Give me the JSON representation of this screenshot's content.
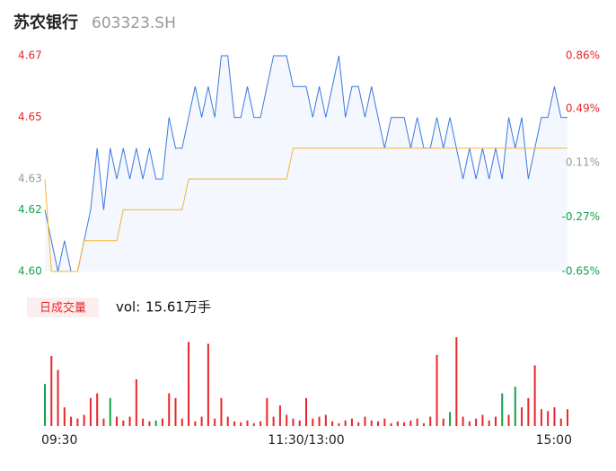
{
  "header": {
    "name": "苏农银行",
    "code": "603323.SH"
  },
  "chart_data": [
    {
      "type": "line",
      "ylim": [
        4.6,
        4.67
      ],
      "yticks": [
        4.67,
        4.65,
        4.63,
        4.62,
        {
          "value": 4.6,
          "label": "4.60"
        }
      ],
      "y2lim": [
        -0.65,
        0.86
      ],
      "y2ticks": [
        {
          "value": 0.86,
          "label": "0.86%"
        },
        {
          "value": 0.49,
          "label": "0.49%"
        },
        {
          "value": 0.11,
          "label": "0.11%"
        },
        {
          "value": -0.27,
          "label": "-0.27%"
        },
        {
          "value": -0.65,
          "label": "-0.65%"
        }
      ],
      "up_color": "#e8262a",
      "down_color": "#14a04a",
      "flat_color": "#999999",
      "series": [
        {
          "color": "#3a78e0",
          "fill": "#f4f7fd",
          "values": [
            4.62,
            4.61,
            4.6,
            4.61,
            4.6,
            4.6,
            4.61,
            4.62,
            4.64,
            4.62,
            4.64,
            4.63,
            4.64,
            4.63,
            4.64,
            4.63,
            4.64,
            4.63,
            4.63,
            4.65,
            4.64,
            4.64,
            4.65,
            4.66,
            4.65,
            4.66,
            4.65,
            4.67,
            4.67,
            4.65,
            4.65,
            4.66,
            4.65,
            4.65,
            4.66,
            4.67,
            4.67,
            4.67,
            4.66,
            4.66,
            4.66,
            4.65,
            4.66,
            4.65,
            4.66,
            4.67,
            4.65,
            4.66,
            4.66,
            4.65,
            4.66,
            4.65,
            4.64,
            4.65,
            4.65,
            4.65,
            4.64,
            4.65,
            4.64,
            4.64,
            4.65,
            4.64,
            4.65,
            4.64,
            4.63,
            4.64,
            4.63,
            4.64,
            4.63,
            4.64,
            4.63,
            4.65,
            4.64,
            4.65,
            4.63,
            4.64,
            4.65,
            4.65,
            4.66,
            4.65,
            4.65
          ]
        },
        {
          "color": "#f2b632",
          "values": [
            4.63,
            4.6,
            4.6,
            4.6,
            4.6,
            4.6,
            4.61,
            4.61,
            4.61,
            4.61,
            4.61,
            4.61,
            4.62,
            4.62,
            4.62,
            4.62,
            4.62,
            4.62,
            4.62,
            4.62,
            4.62,
            4.62,
            4.63,
            4.63,
            4.63,
            4.63,
            4.63,
            4.63,
            4.63,
            4.63,
            4.63,
            4.63,
            4.63,
            4.63,
            4.63,
            4.63,
            4.63,
            4.63,
            4.64,
            4.64,
            4.64,
            4.64,
            4.64,
            4.64,
            4.64,
            4.64,
            4.64,
            4.64,
            4.64,
            4.64,
            4.64,
            4.64,
            4.64,
            4.64,
            4.64,
            4.64,
            4.64,
            4.64,
            4.64,
            4.64,
            4.64,
            4.64,
            4.64,
            4.64,
            4.64,
            4.64,
            4.64,
            4.64,
            4.64,
            4.64,
            4.64,
            4.64,
            4.64,
            4.64,
            4.64,
            4.64,
            4.64,
            4.64,
            4.64,
            4.64,
            4.64
          ]
        }
      ]
    },
    {
      "type": "bar",
      "label": "日成交量",
      "volume_label": "vol:",
      "volume_total": "15.61万手",
      "ylim": [
        0,
        100
      ],
      "xticks": [
        {
          "value": 0,
          "label": "09:30"
        },
        {
          "value": 40,
          "label": "11:30/13:00"
        },
        {
          "value": 80,
          "label": "15:00"
        }
      ],
      "up_color": "#e8262a",
      "down_color": "#14a04a",
      "down": [
        0,
        10,
        17,
        62,
        70,
        72
      ],
      "values": [
        45,
        75,
        60,
        20,
        10,
        8,
        12,
        30,
        35,
        8,
        30,
        10,
        6,
        10,
        50,
        8,
        5,
        6,
        8,
        35,
        30,
        8,
        90,
        5,
        10,
        88,
        8,
        30,
        10,
        5,
        4,
        6,
        3,
        5,
        30,
        10,
        22,
        12,
        8,
        6,
        30,
        8,
        10,
        12,
        5,
        3,
        6,
        8,
        4,
        10,
        6,
        5,
        8,
        3,
        5,
        4,
        6,
        8,
        3,
        10,
        76,
        8,
        15,
        95,
        10,
        5,
        8,
        12,
        6,
        10,
        35,
        12,
        42,
        20,
        30,
        65,
        18,
        16,
        20,
        8,
        18
      ]
    }
  ]
}
